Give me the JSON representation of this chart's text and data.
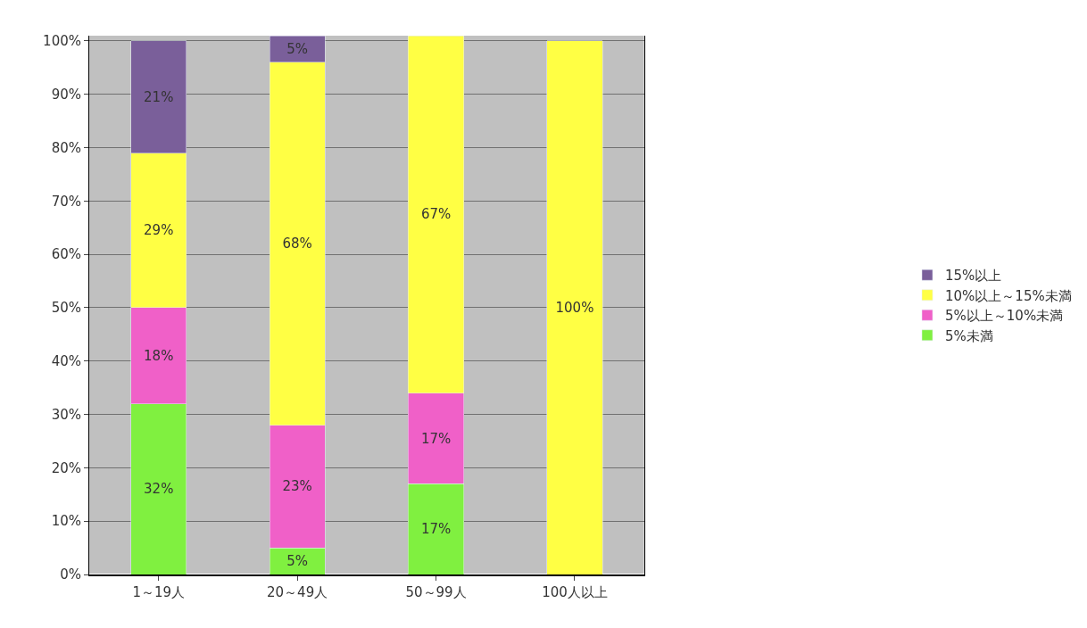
{
  "chart_data": {
    "type": "bar",
    "stacked": true,
    "categories": [
      "1～19人",
      "20～49人",
      "50～99人",
      "100人以上"
    ],
    "series": [
      {
        "name": "5%未満",
        "color": "#80f040",
        "values": [
          32,
          5,
          17,
          null
        ],
        "value_labels": [
          "32%",
          "5%",
          "17%",
          null
        ]
      },
      {
        "name": "5%以上～10%未満",
        "color": "#f060c8",
        "values": [
          18,
          23,
          17,
          null
        ],
        "value_labels": [
          "18%",
          "23%",
          "17%",
          null
        ]
      },
      {
        "name": "10%以上～15%未満",
        "color": "#ffff44",
        "values": [
          29,
          68,
          67,
          100
        ],
        "value_labels": [
          "29%",
          "68%",
          "67%",
          "100%"
        ]
      },
      {
        "name": "15%以上",
        "color": "#7a5f9a",
        "values": [
          21,
          5,
          null,
          null
        ],
        "value_labels": [
          "21%",
          "5%",
          null,
          null
        ]
      }
    ],
    "ylim": [
      0,
      101
    ],
    "yticks": [
      {
        "value": 0,
        "label": "0%"
      },
      {
        "value": 10,
        "label": "10%"
      },
      {
        "value": 20,
        "label": "20%"
      },
      {
        "value": 30,
        "label": "30%"
      },
      {
        "value": 40,
        "label": "40%"
      },
      {
        "value": 50,
        "label": "50%"
      },
      {
        "value": 60,
        "label": "60%"
      },
      {
        "value": 70,
        "label": "70%"
      },
      {
        "value": 80,
        "label": "80%"
      },
      {
        "value": 90,
        "label": "90%"
      },
      {
        "value": 100,
        "label": "100%"
      }
    ],
    "grid": "y",
    "legend": "right"
  }
}
